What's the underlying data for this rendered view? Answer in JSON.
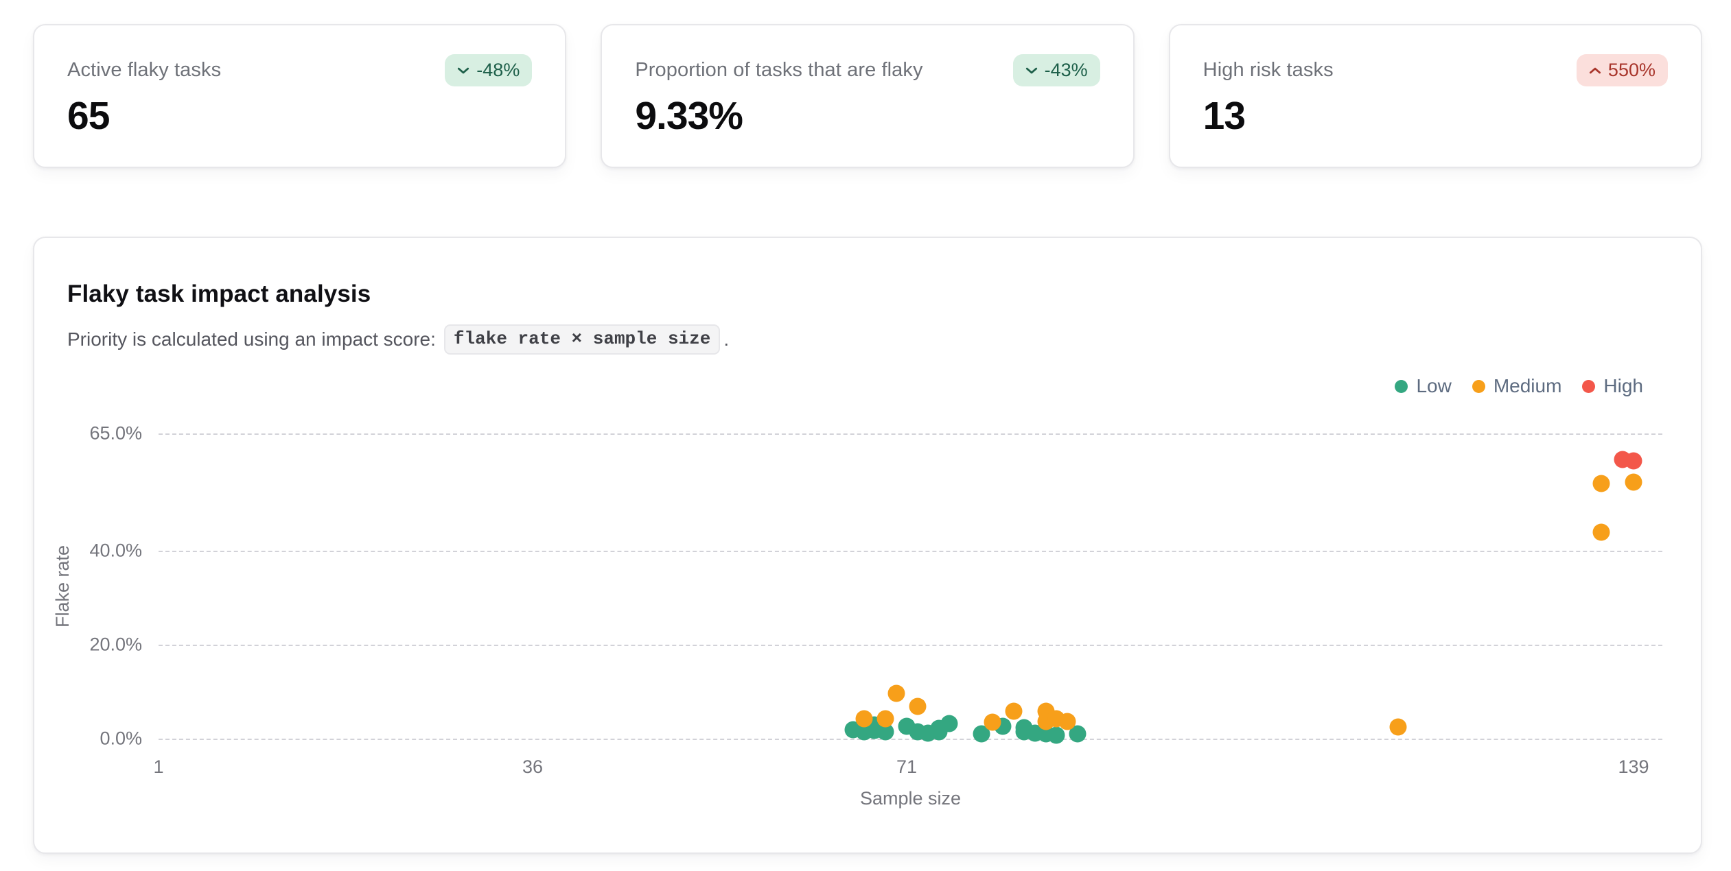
{
  "stats": [
    {
      "label": "Active flaky tasks",
      "value": "65",
      "badge": {
        "delta": "-48%",
        "direction": "down",
        "tone": "positive"
      }
    },
    {
      "label": "Proportion of tasks that are flaky",
      "value": "9.33%",
      "badge": {
        "delta": "-43%",
        "direction": "down",
        "tone": "positive"
      }
    },
    {
      "label": "High risk tasks",
      "value": "13",
      "badge": {
        "delta": "550%",
        "direction": "up",
        "tone": "negative"
      }
    }
  ],
  "impact_section": {
    "title": "Flaky task impact analysis",
    "description_prefix": "Priority is calculated using an impact score:",
    "description_code": "flake rate × sample size",
    "description_suffix": "."
  },
  "colors": {
    "badge_positive_bg": "#d8efe2",
    "badge_positive_text": "#1d5f49",
    "badge_negative_bg": "#fbdfdc",
    "badge_negative_text": "#a8352b",
    "grid_line": "#d2d2d8"
  },
  "chart_data": {
    "type": "scatter",
    "title": "Flaky task impact analysis",
    "xlabel": "Sample size",
    "ylabel": "Flake rate",
    "x_range": [
      1,
      139
    ],
    "y_range": [
      0,
      65
    ],
    "x_ticks": [
      1,
      36,
      71,
      139
    ],
    "y_ticks": [
      {
        "value": 0,
        "label": "0.0%"
      },
      {
        "value": 20,
        "label": "20.0%"
      },
      {
        "value": 40,
        "label": "40.0%"
      },
      {
        "value": 65,
        "label": "65.0%"
      }
    ],
    "grid": "horizontal-dashed",
    "legend_position": "top-right",
    "series": [
      {
        "name": "Low",
        "color": "#34a781",
        "points": [
          [
            66,
            1.9
          ],
          [
            67,
            1.4
          ],
          [
            68,
            2.9
          ],
          [
            68,
            1.7
          ],
          [
            69,
            1.4
          ],
          [
            71,
            2.6
          ],
          [
            72,
            1.4
          ],
          [
            73,
            1.2
          ],
          [
            74,
            1.4
          ],
          [
            74,
            2.2
          ],
          [
            75,
            3.2
          ],
          [
            78,
            1.0
          ],
          [
            80,
            2.6
          ],
          [
            82,
            2.3
          ],
          [
            82,
            1.4
          ],
          [
            83,
            1.2
          ],
          [
            84,
            1.0
          ],
          [
            85,
            0.7
          ],
          [
            87,
            1.0
          ]
        ]
      },
      {
        "name": "Medium",
        "color": "#f79f1a",
        "points": [
          [
            67,
            4.3
          ],
          [
            69,
            4.3
          ],
          [
            70,
            9.7
          ],
          [
            72,
            6.8
          ],
          [
            79,
            3.5
          ],
          [
            81,
            5.9
          ],
          [
            84,
            5.8
          ],
          [
            84,
            3.6
          ],
          [
            85,
            4.3
          ],
          [
            86,
            3.6
          ],
          [
            117,
            2.5
          ],
          [
            136,
            44.0
          ],
          [
            136,
            54.4
          ],
          [
            139,
            54.7
          ]
        ]
      },
      {
        "name": "High",
        "color": "#f3574a",
        "points": [
          [
            138,
            59.4
          ],
          [
            139,
            59.1
          ]
        ]
      }
    ]
  }
}
